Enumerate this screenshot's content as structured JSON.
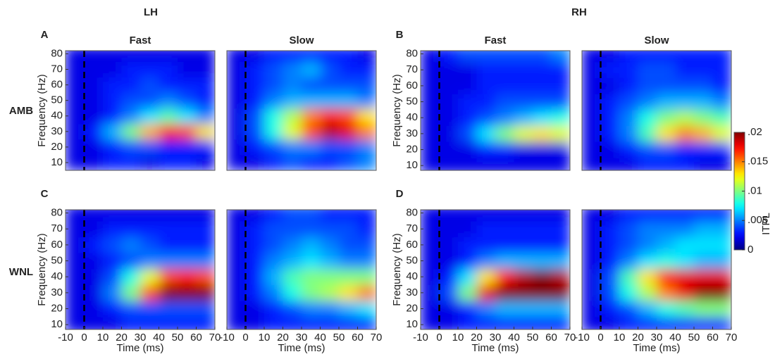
{
  "hemispheres": [
    "LH",
    "RH"
  ],
  "conditions": [
    "AMB",
    "WNL"
  ],
  "colorbar": {
    "label": "ITPL",
    "lim": [
      0,
      0.02
    ],
    "ticks": [
      {
        "value": 0.02,
        "label": ".02"
      },
      {
        "value": 0.015,
        "label": ".015"
      },
      {
        "value": 0.01,
        "label": ".01"
      },
      {
        "value": 0.005,
        "label": ".005"
      },
      0
    ]
  },
  "chart_data": [
    {
      "type": "heatmap",
      "label": "A",
      "title": "Fast",
      "ylabel": "Frequency (Hz)",
      "x": [
        -5,
        5,
        15,
        25,
        35,
        45,
        55,
        65
      ],
      "y": [
        10,
        20,
        30,
        40,
        50,
        60,
        70,
        80
      ],
      "xlim": [
        -10,
        70
      ],
      "ylim": [
        5,
        82
      ],
      "vlines": [
        0
      ],
      "yticks": [
        10,
        20,
        30,
        40,
        50,
        60,
        70,
        80
      ],
      "values": [
        [
          0.002,
          0.002,
          0.003,
          0.003,
          0.002,
          0.003,
          0.003,
          0.002
        ],
        [
          0.002,
          0.002,
          0.003,
          0.004,
          0.004,
          0.003,
          0.003,
          0.003
        ],
        [
          0.002,
          0.003,
          0.006,
          0.01,
          0.014,
          0.017,
          0.016,
          0.013
        ],
        [
          0.002,
          0.002,
          0.003,
          0.005,
          0.007,
          0.009,
          0.007,
          0.005
        ],
        [
          0.002,
          0.002,
          0.003,
          0.004,
          0.004,
          0.005,
          0.004,
          0.003
        ],
        [
          0.002,
          0.002,
          0.003,
          0.003,
          0.004,
          0.003,
          0.003,
          0.003
        ],
        [
          0.002,
          0.002,
          0.002,
          0.003,
          0.003,
          0.003,
          0.002,
          0.002
        ],
        [
          0.002,
          0.002,
          0.002,
          0.002,
          0.002,
          0.002,
          0.002,
          0.002
        ]
      ]
    },
    {
      "type": "heatmap",
      "title": "Slow",
      "x": [
        -5,
        5,
        15,
        25,
        35,
        45,
        55,
        65
      ],
      "y": [
        10,
        20,
        30,
        40,
        50,
        60,
        70,
        80
      ],
      "xlim": [
        -10,
        70
      ],
      "ylim": [
        5,
        82
      ],
      "vlines": [
        0
      ],
      "values": [
        [
          0.002,
          0.002,
          0.003,
          0.004,
          0.003,
          0.003,
          0.004,
          0.005
        ],
        [
          0.002,
          0.003,
          0.004,
          0.005,
          0.005,
          0.004,
          0.004,
          0.005
        ],
        [
          0.002,
          0.004,
          0.008,
          0.012,
          0.016,
          0.019,
          0.018,
          0.015
        ],
        [
          0.002,
          0.004,
          0.008,
          0.011,
          0.015,
          0.017,
          0.016,
          0.013
        ],
        [
          0.002,
          0.003,
          0.005,
          0.006,
          0.006,
          0.006,
          0.006,
          0.005
        ],
        [
          0.002,
          0.003,
          0.004,
          0.005,
          0.004,
          0.004,
          0.004,
          0.004
        ],
        [
          0.002,
          0.003,
          0.004,
          0.005,
          0.006,
          0.004,
          0.003,
          0.003
        ],
        [
          0.002,
          0.002,
          0.003,
          0.003,
          0.003,
          0.003,
          0.003,
          0.002
        ]
      ]
    },
    {
      "type": "heatmap",
      "label": "B",
      "title": "Fast",
      "ylabel": "Frequency (Hz)",
      "x": [
        -5,
        5,
        15,
        25,
        35,
        45,
        55,
        65
      ],
      "y": [
        10,
        20,
        30,
        40,
        50,
        60,
        70,
        80
      ],
      "xlim": [
        -10,
        70
      ],
      "ylim": [
        7,
        82
      ],
      "vlines": [
        0
      ],
      "yticks": [
        10,
        20,
        30,
        40,
        50,
        60,
        70,
        80
      ],
      "values": [
        [
          0.002,
          0.002,
          0.002,
          0.002,
          0.002,
          0.002,
          0.002,
          0.002
        ],
        [
          0.002,
          0.002,
          0.002,
          0.003,
          0.003,
          0.002,
          0.002,
          0.002
        ],
        [
          0.002,
          0.002,
          0.004,
          0.007,
          0.01,
          0.012,
          0.013,
          0.012
        ],
        [
          0.002,
          0.002,
          0.003,
          0.004,
          0.005,
          0.006,
          0.007,
          0.008
        ],
        [
          0.002,
          0.002,
          0.003,
          0.003,
          0.004,
          0.004,
          0.004,
          0.004
        ],
        [
          0.002,
          0.002,
          0.002,
          0.003,
          0.003,
          0.003,
          0.003,
          0.003
        ],
        [
          0.002,
          0.002,
          0.002,
          0.003,
          0.003,
          0.003,
          0.003,
          0.003
        ],
        [
          0.002,
          0.003,
          0.004,
          0.004,
          0.004,
          0.004,
          0.004,
          0.005
        ]
      ]
    },
    {
      "type": "heatmap",
      "title": "Slow",
      "x": [
        -5,
        5,
        15,
        25,
        35,
        45,
        55,
        65
      ],
      "y": [
        10,
        20,
        30,
        40,
        50,
        60,
        70,
        80
      ],
      "xlim": [
        -10,
        70
      ],
      "ylim": [
        7,
        82
      ],
      "vlines": [
        0
      ],
      "values": [
        [
          0.002,
          0.002,
          0.002,
          0.003,
          0.003,
          0.003,
          0.002,
          0.002
        ],
        [
          0.002,
          0.002,
          0.003,
          0.004,
          0.004,
          0.003,
          0.003,
          0.003
        ],
        [
          0.002,
          0.003,
          0.005,
          0.009,
          0.013,
          0.015,
          0.014,
          0.012
        ],
        [
          0.002,
          0.003,
          0.005,
          0.008,
          0.01,
          0.011,
          0.01,
          0.009
        ],
        [
          0.002,
          0.003,
          0.004,
          0.005,
          0.006,
          0.006,
          0.006,
          0.005
        ],
        [
          0.002,
          0.002,
          0.003,
          0.004,
          0.004,
          0.004,
          0.004,
          0.003
        ],
        [
          0.002,
          0.003,
          0.003,
          0.004,
          0.004,
          0.003,
          0.003,
          0.003
        ],
        [
          0.002,
          0.002,
          0.003,
          0.003,
          0.003,
          0.003,
          0.003,
          0.003
        ]
      ]
    },
    {
      "type": "heatmap",
      "label": "C",
      "ylabel": "Frequency (Hz)",
      "xlabel": "Time (ms)",
      "x": [
        -5,
        5,
        15,
        25,
        35,
        45,
        55,
        65
      ],
      "y": [
        10,
        20,
        30,
        40,
        50,
        60,
        70,
        80
      ],
      "xlim": [
        -10,
        70
      ],
      "ylim": [
        7,
        82
      ],
      "vlines": [
        0
      ],
      "xticks": [
        -10,
        0,
        10,
        20,
        30,
        40,
        50,
        60,
        70
      ],
      "yticks": [
        10,
        20,
        30,
        40,
        50,
        60,
        70,
        80
      ],
      "values": [
        [
          0.002,
          0.002,
          0.002,
          0.003,
          0.003,
          0.003,
          0.003,
          0.003
        ],
        [
          0.002,
          0.002,
          0.003,
          0.004,
          0.004,
          0.004,
          0.004,
          0.004
        ],
        [
          0.002,
          0.002,
          0.005,
          0.01,
          0.016,
          0.02,
          0.02,
          0.02
        ],
        [
          0.002,
          0.002,
          0.004,
          0.008,
          0.012,
          0.016,
          0.017,
          0.016
        ],
        [
          0.002,
          0.002,
          0.003,
          0.004,
          0.005,
          0.005,
          0.005,
          0.005
        ],
        [
          0.002,
          0.003,
          0.004,
          0.005,
          0.004,
          0.003,
          0.003,
          0.003
        ],
        [
          0.002,
          0.002,
          0.003,
          0.003,
          0.003,
          0.003,
          0.003,
          0.003
        ],
        [
          0.002,
          0.002,
          0.002,
          0.002,
          0.002,
          0.002,
          0.002,
          0.002
        ]
      ]
    },
    {
      "type": "heatmap",
      "xlabel": "Time (ms)",
      "x": [
        -5,
        5,
        15,
        25,
        35,
        45,
        55,
        65
      ],
      "y": [
        10,
        20,
        30,
        40,
        50,
        60,
        70,
        80
      ],
      "xlim": [
        -10,
        70
      ],
      "ylim": [
        7,
        82
      ],
      "vlines": [
        0
      ],
      "xticks": [
        -10,
        0,
        10,
        20,
        30,
        40,
        50,
        60,
        70
      ],
      "values": [
        [
          0.002,
          0.002,
          0.003,
          0.003,
          0.003,
          0.003,
          0.003,
          0.003
        ],
        [
          0.002,
          0.002,
          0.003,
          0.004,
          0.005,
          0.005,
          0.006,
          0.007
        ],
        [
          0.002,
          0.003,
          0.005,
          0.008,
          0.01,
          0.011,
          0.013,
          0.015
        ],
        [
          0.002,
          0.003,
          0.006,
          0.009,
          0.01,
          0.01,
          0.01,
          0.01
        ],
        [
          0.002,
          0.003,
          0.005,
          0.006,
          0.007,
          0.006,
          0.005,
          0.005
        ],
        [
          0.002,
          0.003,
          0.004,
          0.005,
          0.006,
          0.005,
          0.004,
          0.004
        ],
        [
          0.002,
          0.003,
          0.004,
          0.004,
          0.004,
          0.004,
          0.004,
          0.003
        ],
        [
          0.002,
          0.002,
          0.003,
          0.004,
          0.004,
          0.003,
          0.003,
          0.003
        ]
      ]
    },
    {
      "type": "heatmap",
      "label": "D",
      "ylabel": "Frequency (Hz)",
      "xlabel": "Time (ms)",
      "x": [
        -5,
        5,
        15,
        25,
        35,
        45,
        55,
        65
      ],
      "y": [
        10,
        20,
        30,
        40,
        50,
        60,
        70,
        80
      ],
      "xlim": [
        -10,
        70
      ],
      "ylim": [
        7,
        82
      ],
      "vlines": [
        0
      ],
      "xticks": [
        -10,
        0,
        10,
        20,
        30,
        40,
        50,
        60,
        70
      ],
      "yticks": [
        10,
        20,
        30,
        40,
        50,
        60,
        70,
        80
      ],
      "values": [
        [
          0.002,
          0.002,
          0.003,
          0.003,
          0.003,
          0.003,
          0.003,
          0.003
        ],
        [
          0.002,
          0.002,
          0.003,
          0.005,
          0.006,
          0.006,
          0.006,
          0.006
        ],
        [
          0.002,
          0.004,
          0.01,
          0.018,
          0.02,
          0.02,
          0.02,
          0.02
        ],
        [
          0.002,
          0.003,
          0.007,
          0.013,
          0.017,
          0.019,
          0.02,
          0.019
        ],
        [
          0.002,
          0.002,
          0.003,
          0.005,
          0.006,
          0.006,
          0.006,
          0.006
        ],
        [
          0.002,
          0.002,
          0.003,
          0.003,
          0.003,
          0.003,
          0.003,
          0.003
        ],
        [
          0.002,
          0.002,
          0.002,
          0.003,
          0.003,
          0.003,
          0.003,
          0.003
        ],
        [
          0.002,
          0.002,
          0.002,
          0.002,
          0.002,
          0.002,
          0.002,
          0.002
        ]
      ]
    },
    {
      "type": "heatmap",
      "xlabel": "Time (ms)",
      "x": [
        -5,
        5,
        15,
        25,
        35,
        45,
        55,
        65
      ],
      "y": [
        10,
        20,
        30,
        40,
        50,
        60,
        70,
        80
      ],
      "xlim": [
        -10,
        70
      ],
      "ylim": [
        7,
        82
      ],
      "vlines": [
        0
      ],
      "xticks": [
        -10,
        0,
        10,
        20,
        30,
        40,
        50,
        60,
        70
      ],
      "values": [
        [
          0.002,
          0.002,
          0.003,
          0.003,
          0.003,
          0.003,
          0.003,
          0.003
        ],
        [
          0.002,
          0.003,
          0.004,
          0.006,
          0.008,
          0.009,
          0.01,
          0.01
        ],
        [
          0.002,
          0.004,
          0.008,
          0.011,
          0.015,
          0.018,
          0.02,
          0.02
        ],
        [
          0.002,
          0.004,
          0.009,
          0.013,
          0.017,
          0.018,
          0.018,
          0.018
        ],
        [
          0.002,
          0.003,
          0.005,
          0.007,
          0.008,
          0.007,
          0.006,
          0.006
        ],
        [
          0.002,
          0.003,
          0.004,
          0.005,
          0.006,
          0.007,
          0.007,
          0.007
        ],
        [
          0.002,
          0.003,
          0.004,
          0.005,
          0.005,
          0.005,
          0.006,
          0.006
        ],
        [
          0.002,
          0.002,
          0.003,
          0.003,
          0.003,
          0.003,
          0.003,
          0.003
        ]
      ]
    }
  ]
}
